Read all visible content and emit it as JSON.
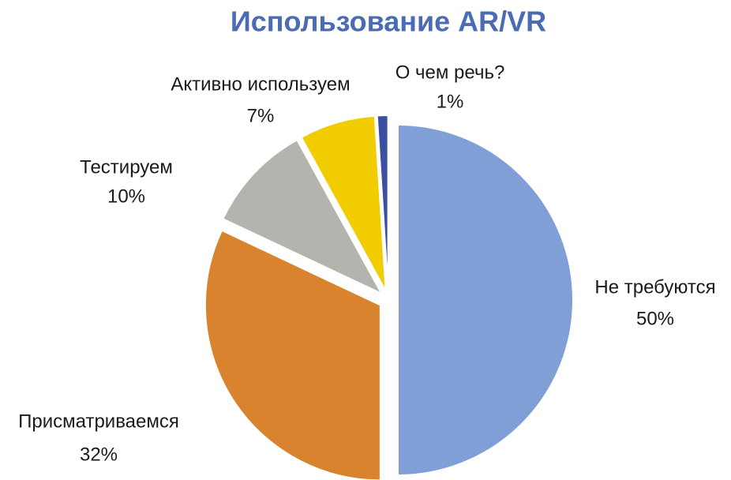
{
  "chart_data": {
    "type": "pie",
    "title": "Использование AR/VR",
    "categories": [
      "Не требуются",
      "Присматриваемся",
      "Тестируем",
      "Активно используем",
      "О чем речь?"
    ],
    "values": [
      50,
      32,
      10,
      7,
      1
    ],
    "value_labels": [
      "50%",
      "32%",
      "10%",
      "7%",
      "1%"
    ],
    "colors": [
      "#7f9fd6",
      "#d9832f",
      "#b5b3ae",
      "#f0cc00",
      "#3a4fa0"
    ]
  }
}
